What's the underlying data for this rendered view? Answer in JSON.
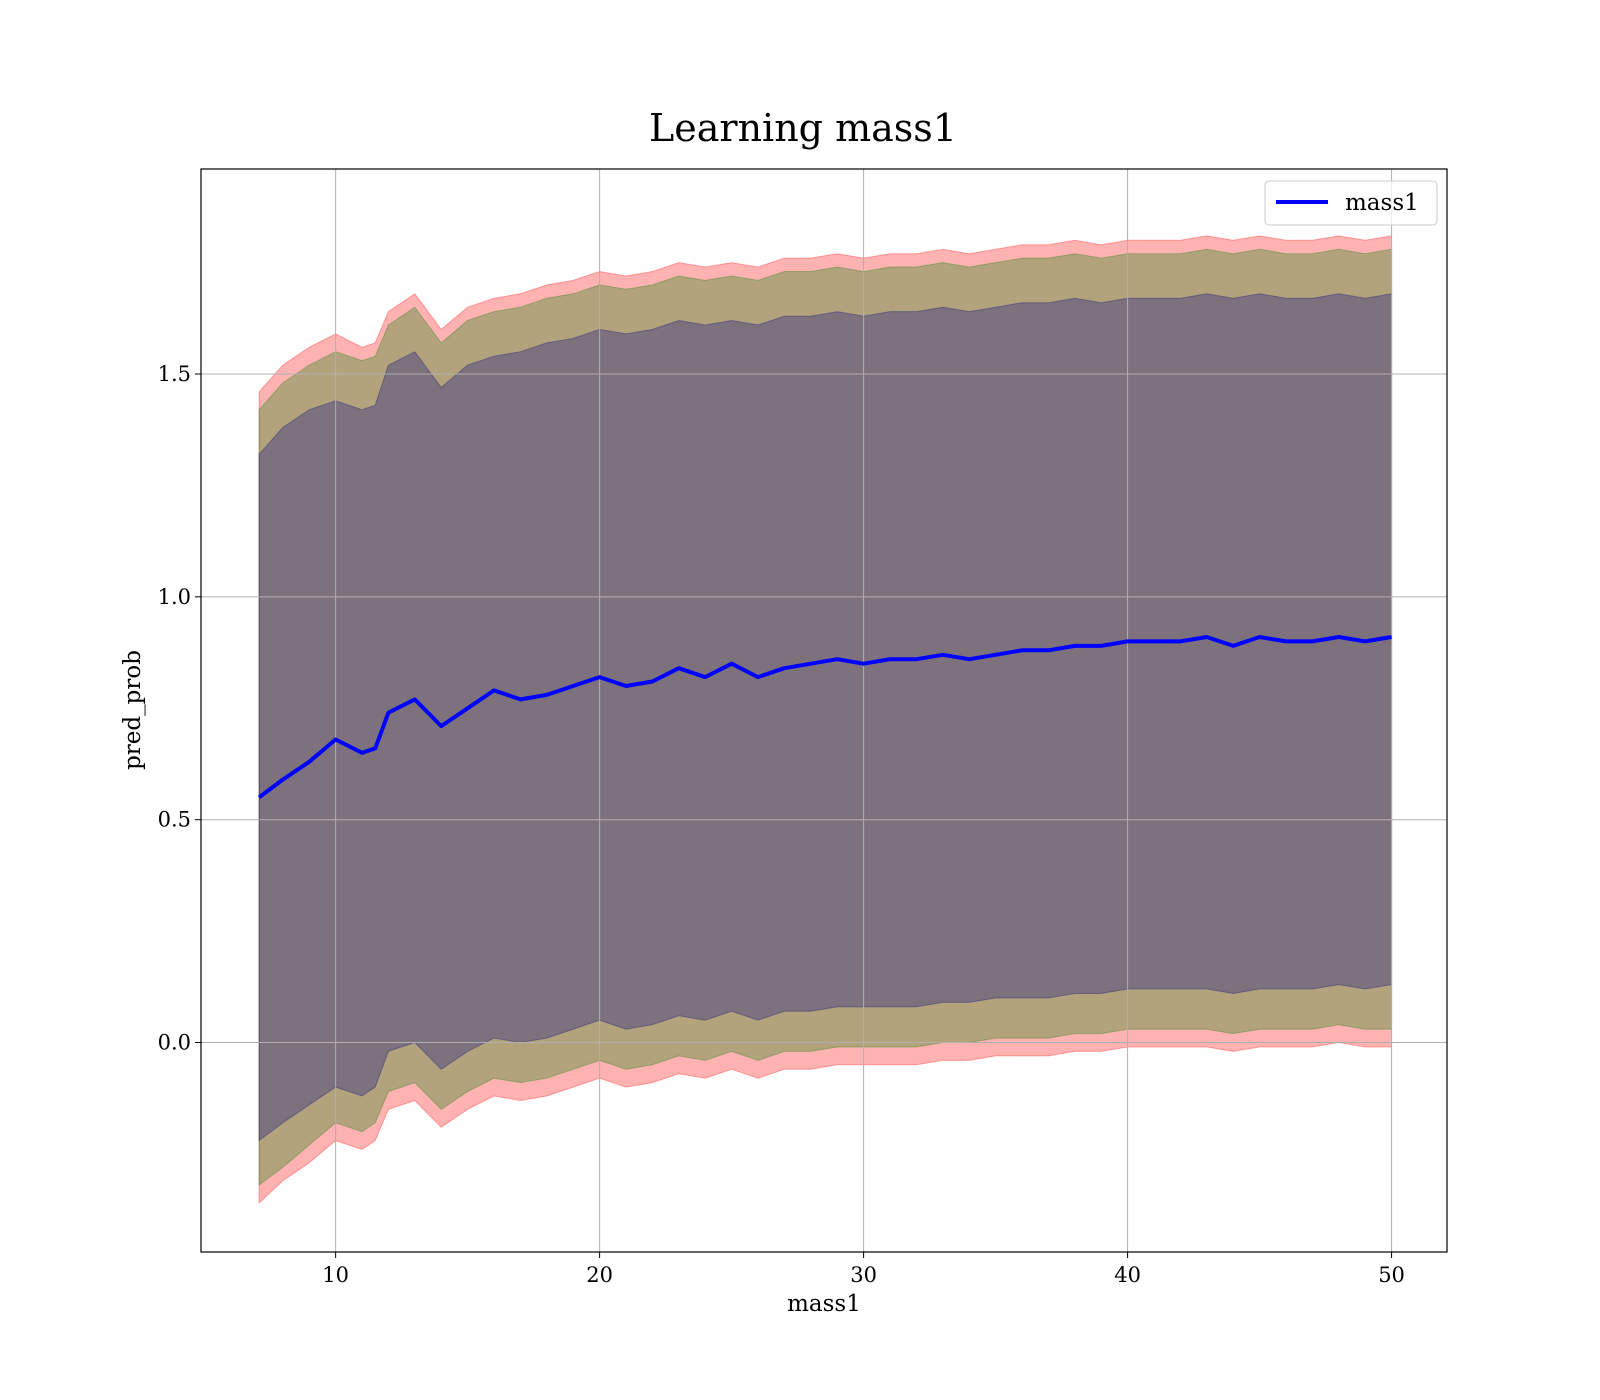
{
  "chart_data": {
    "type": "area",
    "title": "Learning mass1",
    "xlabel": "mass1",
    "ylabel": "pred_prob",
    "xlim": [
      4.9,
      52.1
    ],
    "ylim": [
      -0.47,
      1.96
    ],
    "xticks": [
      10,
      20,
      30,
      40,
      50
    ],
    "yticks": [
      0.0,
      0.5,
      1.0,
      1.5
    ],
    "xtick_labels": [
      "10",
      "20",
      "30",
      "40",
      "50"
    ],
    "ytick_labels": [
      "0.0",
      "0.5",
      "1.0",
      "1.5"
    ],
    "grid": true,
    "legend_position": "top-right",
    "x": [
      7.1,
      8,
      9,
      10,
      11,
      11.5,
      12,
      13,
      14,
      15,
      16,
      17,
      18,
      19,
      20,
      21,
      22,
      23,
      24,
      25,
      26,
      27,
      28,
      29,
      30,
      31,
      32,
      33,
      34,
      35,
      36,
      37,
      38,
      39,
      40,
      41,
      42,
      43,
      44,
      45,
      46,
      47,
      48,
      49,
      50
    ],
    "series": [
      {
        "name": "mass1",
        "color": "#0000ff",
        "values": [
          0.55,
          0.59,
          0.63,
          0.68,
          0.65,
          0.66,
          0.74,
          0.77,
          0.71,
          0.75,
          0.79,
          0.77,
          0.78,
          0.8,
          0.82,
          0.8,
          0.81,
          0.84,
          0.82,
          0.85,
          0.82,
          0.84,
          0.85,
          0.86,
          0.85,
          0.86,
          0.86,
          0.87,
          0.86,
          0.87,
          0.88,
          0.88,
          0.89,
          0.89,
          0.9,
          0.9,
          0.9,
          0.91,
          0.89,
          0.91,
          0.9,
          0.9,
          0.91,
          0.9,
          0.91
        ]
      }
    ],
    "bands": [
      {
        "color": "#ff0000",
        "opacity": 0.3,
        "upper": [
          1.46,
          1.52,
          1.56,
          1.59,
          1.56,
          1.57,
          1.64,
          1.68,
          1.6,
          1.65,
          1.67,
          1.68,
          1.7,
          1.71,
          1.73,
          1.72,
          1.73,
          1.75,
          1.74,
          1.75,
          1.74,
          1.76,
          1.76,
          1.77,
          1.76,
          1.77,
          1.77,
          1.78,
          1.77,
          1.78,
          1.79,
          1.79,
          1.8,
          1.79,
          1.8,
          1.8,
          1.8,
          1.81,
          1.8,
          1.81,
          1.8,
          1.8,
          1.81,
          1.8,
          1.81
        ],
        "lower": [
          -0.36,
          -0.31,
          -0.27,
          -0.22,
          -0.24,
          -0.22,
          -0.15,
          -0.13,
          -0.19,
          -0.15,
          -0.12,
          -0.13,
          -0.12,
          -0.1,
          -0.08,
          -0.1,
          -0.09,
          -0.07,
          -0.08,
          -0.06,
          -0.08,
          -0.06,
          -0.06,
          -0.05,
          -0.05,
          -0.05,
          -0.05,
          -0.04,
          -0.04,
          -0.03,
          -0.03,
          -0.03,
          -0.02,
          -0.02,
          -0.01,
          -0.01,
          -0.01,
          -0.01,
          -0.02,
          -0.01,
          -0.01,
          -0.01,
          0.0,
          -0.01,
          -0.01
        ]
      },
      {
        "color": "#008000",
        "opacity": 0.3,
        "upper": [
          1.42,
          1.48,
          1.52,
          1.55,
          1.53,
          1.54,
          1.61,
          1.65,
          1.57,
          1.62,
          1.64,
          1.65,
          1.67,
          1.68,
          1.7,
          1.69,
          1.7,
          1.72,
          1.71,
          1.72,
          1.71,
          1.73,
          1.73,
          1.74,
          1.73,
          1.74,
          1.74,
          1.75,
          1.74,
          1.75,
          1.76,
          1.76,
          1.77,
          1.76,
          1.77,
          1.77,
          1.77,
          1.78,
          1.77,
          1.78,
          1.77,
          1.77,
          1.78,
          1.77,
          1.78
        ],
        "lower": [
          -0.32,
          -0.28,
          -0.23,
          -0.18,
          -0.2,
          -0.18,
          -0.11,
          -0.09,
          -0.15,
          -0.11,
          -0.08,
          -0.09,
          -0.08,
          -0.06,
          -0.04,
          -0.06,
          -0.05,
          -0.03,
          -0.04,
          -0.02,
          -0.04,
          -0.02,
          -0.02,
          -0.01,
          -0.01,
          -0.01,
          -0.01,
          0.0,
          0.0,
          0.01,
          0.01,
          0.01,
          0.02,
          0.02,
          0.03,
          0.03,
          0.03,
          0.03,
          0.02,
          0.03,
          0.03,
          0.03,
          0.04,
          0.03,
          0.03
        ]
      },
      {
        "color": "#000080",
        "opacity": 0.3,
        "upper": [
          1.32,
          1.38,
          1.42,
          1.44,
          1.42,
          1.43,
          1.52,
          1.55,
          1.47,
          1.52,
          1.54,
          1.55,
          1.57,
          1.58,
          1.6,
          1.59,
          1.6,
          1.62,
          1.61,
          1.62,
          1.61,
          1.63,
          1.63,
          1.64,
          1.63,
          1.64,
          1.64,
          1.65,
          1.64,
          1.65,
          1.66,
          1.66,
          1.67,
          1.66,
          1.67,
          1.67,
          1.67,
          1.68,
          1.67,
          1.68,
          1.67,
          1.67,
          1.68,
          1.67,
          1.68
        ],
        "lower": [
          -0.22,
          -0.18,
          -0.14,
          -0.1,
          -0.12,
          -0.1,
          -0.02,
          0.0,
          -0.06,
          -0.02,
          0.01,
          0.0,
          0.01,
          0.03,
          0.05,
          0.03,
          0.04,
          0.06,
          0.05,
          0.07,
          0.05,
          0.07,
          0.07,
          0.08,
          0.08,
          0.08,
          0.08,
          0.09,
          0.09,
          0.1,
          0.1,
          0.1,
          0.11,
          0.11,
          0.12,
          0.12,
          0.12,
          0.12,
          0.11,
          0.12,
          0.12,
          0.12,
          0.13,
          0.12,
          0.13
        ]
      }
    ]
  }
}
